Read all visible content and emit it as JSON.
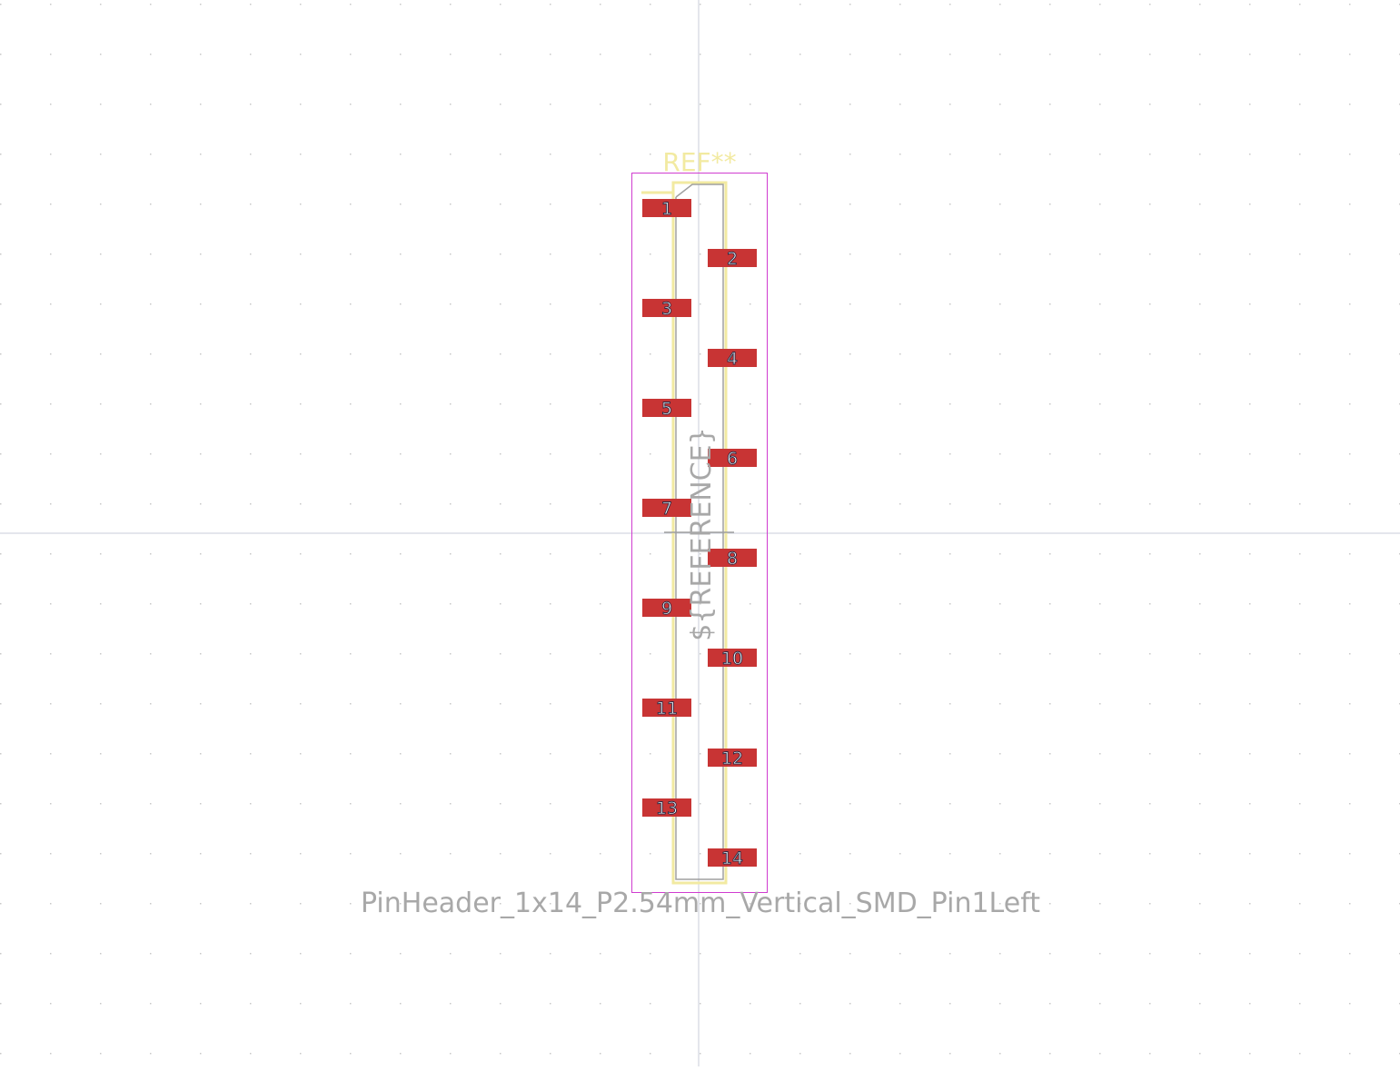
{
  "footprint": {
    "name": "PinHeader_1x14_P2.54mm_Vertical_SMD_Pin1Left",
    "ref_designator": "REF**",
    "ref_field": "${REFERENCE}"
  },
  "pads": [
    {
      "number": "1",
      "side": "left"
    },
    {
      "number": "2",
      "side": "right"
    },
    {
      "number": "3",
      "side": "left"
    },
    {
      "number": "4",
      "side": "right"
    },
    {
      "number": "5",
      "side": "left"
    },
    {
      "number": "6",
      "side": "right"
    },
    {
      "number": "7",
      "side": "left"
    },
    {
      "number": "8",
      "side": "right"
    },
    {
      "number": "9",
      "side": "left"
    },
    {
      "number": "10",
      "side": "right"
    },
    {
      "number": "11",
      "side": "left"
    },
    {
      "number": "12",
      "side": "right"
    },
    {
      "number": "13",
      "side": "left"
    },
    {
      "number": "14",
      "side": "right"
    }
  ],
  "colors": {
    "background": "#ffffff",
    "grid_dot": "#c8c8c8",
    "axis": "#c8cdd8",
    "pad": "#c83434",
    "silkscreen": "#f2eaa1",
    "courtyard": "#d03cd0",
    "fab": "#a0a0a0",
    "value_text": "#a8a8a8"
  }
}
